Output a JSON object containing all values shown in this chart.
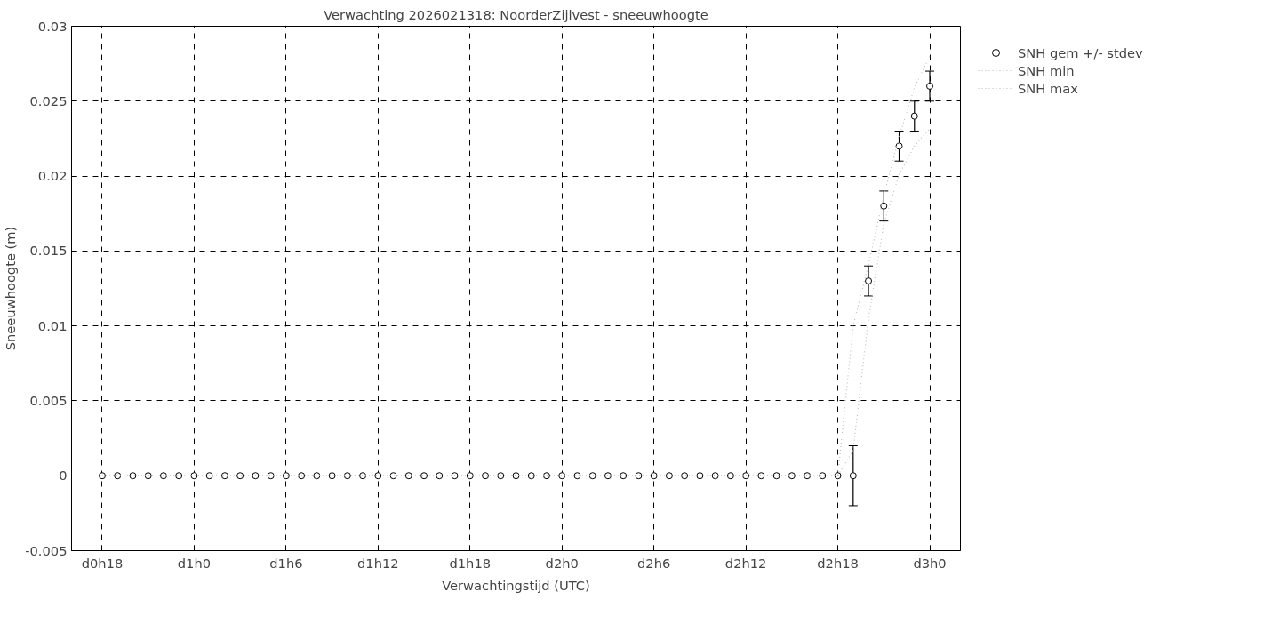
{
  "chart_data": {
    "type": "scatter",
    "title": "Verwachting 2026021318: NoorderZijlvest - sneeuwhoogte",
    "xlabel": "Verwachtingstijd (UTC)",
    "ylabel": "Sneeuwhoogte (m)",
    "categories": [
      "d0h18",
      null,
      null,
      null,
      null,
      null,
      "d1h0",
      null,
      null,
      null,
      null,
      null,
      "d1h6",
      null,
      null,
      null,
      null,
      null,
      "d1h12",
      null,
      null,
      null,
      null,
      null,
      "d1h18",
      null,
      null,
      null,
      null,
      null,
      "d2h0",
      null,
      null,
      null,
      null,
      null,
      "d2h6",
      null,
      null,
      null,
      null,
      null,
      "d2h12",
      null,
      null,
      null,
      null,
      null,
      "d2h18",
      null,
      null,
      null,
      null,
      null,
      "d3h0"
    ],
    "series": [
      {
        "name": "SNH gem +/- stdev",
        "marker": "circle",
        "color": "#000000",
        "values": [
          0,
          0,
          0,
          0,
          0,
          0,
          0,
          0,
          0,
          0,
          0,
          0,
          0,
          0,
          0,
          0,
          0,
          0,
          0,
          0,
          0,
          0,
          0,
          0,
          0,
          0,
          0,
          0,
          0,
          0,
          0,
          0,
          0,
          0,
          0,
          0,
          0,
          0,
          0,
          0,
          0,
          0,
          0,
          0,
          0,
          0,
          0,
          0,
          0,
          0,
          0.013,
          0.018,
          0.022,
          0.024,
          0.026
        ],
        "errors": [
          null,
          null,
          null,
          null,
          null,
          null,
          null,
          null,
          null,
          null,
          null,
          null,
          null,
          null,
          null,
          null,
          null,
          null,
          null,
          null,
          null,
          null,
          null,
          null,
          null,
          null,
          null,
          null,
          null,
          null,
          null,
          null,
          null,
          null,
          null,
          null,
          null,
          null,
          null,
          null,
          null,
          null,
          null,
          null,
          null,
          null,
          null,
          null,
          null,
          0.002,
          0.001,
          0.001,
          0.001,
          0.001,
          0.001
        ]
      },
      {
        "name": "SNH min",
        "type": "line",
        "line_style": "dotted",
        "color": "#c0c0c0",
        "values": [
          0,
          0,
          0,
          0,
          0,
          0,
          0,
          0,
          0,
          0,
          0,
          0,
          0,
          0,
          0,
          0,
          0,
          0,
          0,
          0,
          0,
          0,
          0,
          0,
          0,
          0,
          0,
          0,
          0,
          0,
          0,
          0,
          0,
          0,
          0,
          0,
          0,
          0,
          0,
          0,
          0,
          0,
          0,
          0,
          0,
          0,
          0,
          0,
          0,
          0.0017,
          0.0105,
          0.0168,
          0.0201,
          0.022,
          0.0232
        ]
      },
      {
        "name": "SNH max",
        "type": "line",
        "line_style": "dotted",
        "color": "#c0c0c0",
        "values": [
          0,
          0,
          0,
          0,
          0,
          0,
          0,
          0,
          0,
          0,
          0,
          0,
          0,
          0,
          0,
          0,
          0,
          0,
          0,
          0,
          0,
          0,
          0,
          0,
          0,
          0,
          0,
          0,
          0,
          0,
          0,
          0,
          0,
          0,
          0,
          0,
          0,
          0,
          0,
          0,
          0,
          0,
          0,
          0,
          0,
          0,
          0,
          0,
          0,
          0.01,
          0.0141,
          0.0187,
          0.0226,
          0.0259,
          0.028
        ]
      }
    ],
    "ylim": [
      -0.005,
      0.03
    ],
    "yticks": [
      -0.005,
      0,
      0.005,
      0.01,
      0.015,
      0.02,
      0.025,
      0.03
    ],
    "grid": true,
    "legend": "top right"
  }
}
